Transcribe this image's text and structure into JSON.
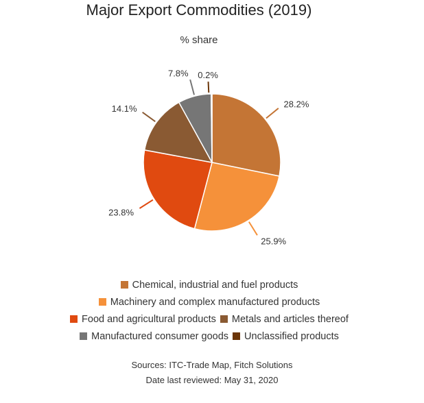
{
  "chart_data": {
    "type": "pie",
    "title": "Major Export Commodities (2019)",
    "subtitle": "% share",
    "slices": [
      {
        "label": "Chemical, industrial and fuel products",
        "value": 28.2,
        "value_label": "28.2%",
        "color": "#C47535"
      },
      {
        "label": "Machinery and complex manufactured products",
        "value": 25.9,
        "value_label": "25.9%",
        "color": "#F5913A"
      },
      {
        "label": "Food and agricultural products",
        "value": 23.8,
        "value_label": "23.8%",
        "color": "#E04A10"
      },
      {
        "label": "Metals and articles thereof",
        "value": 14.1,
        "value_label": "14.1%",
        "color": "#8A5A33"
      },
      {
        "label": "Manufactured consumer goods",
        "value": 7.8,
        "value_label": "7.8%",
        "color": "#767676"
      },
      {
        "label": "Unclassified products",
        "value": 0.2,
        "value_label": "0.2%",
        "color": "#6B3508"
      }
    ],
    "legend_placement": "bottom"
  },
  "footer": {
    "sources": "Sources: ITC-Trade Map, Fitch Solutions",
    "reviewed": "Date last reviewed: May 31, 2020"
  }
}
